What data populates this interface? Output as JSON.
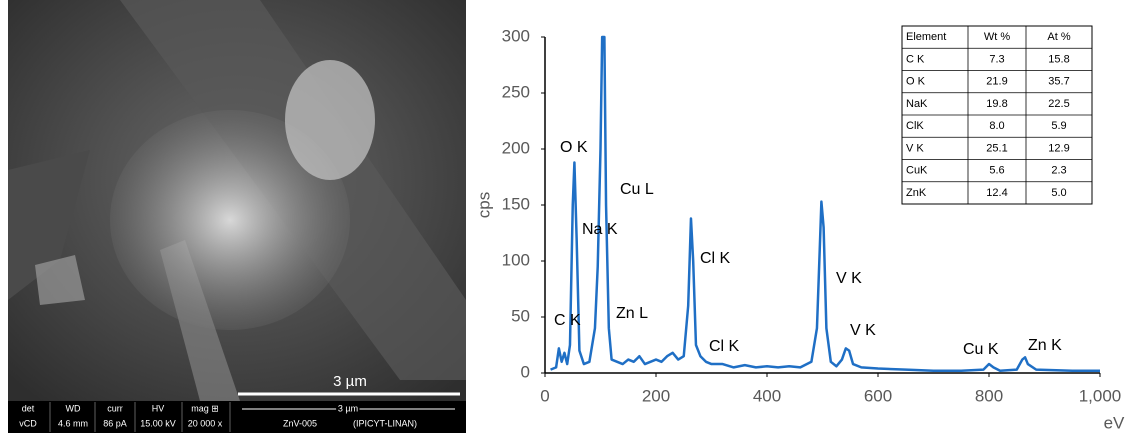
{
  "chart_data": {
    "type": "line",
    "y_label": "cps",
    "x_label": "eV",
    "xlim": [
      0,
      1000
    ],
    "ylim": [
      0,
      300
    ],
    "xticks": [
      0,
      200,
      400,
      600,
      800,
      {
        "value": 1000,
        "label": "1,000"
      }
    ],
    "yticks": [
      0,
      50,
      100,
      150,
      200,
      250,
      300
    ],
    "color": "#1f6fc5",
    "x": [
      10,
      20,
      25,
      30,
      35,
      40,
      45,
      50,
      53,
      57,
      62,
      70,
      80,
      90,
      95,
      100,
      103,
      107,
      110,
      115,
      120,
      130,
      140,
      150,
      160,
      170,
      180,
      190,
      200,
      210,
      220,
      230,
      240,
      250,
      258,
      263,
      267,
      272,
      280,
      290,
      300,
      320,
      340,
      360,
      380,
      400,
      420,
      440,
      460,
      480,
      490,
      495,
      498,
      502,
      507,
      515,
      525,
      535,
      542,
      548,
      555,
      570,
      600,
      650,
      700,
      750,
      790,
      800,
      808,
      820,
      850,
      860,
      865,
      870,
      885,
      950,
      1000
    ],
    "values": [
      3,
      5,
      22,
      10,
      18,
      8,
      25,
      150,
      188,
      120,
      20,
      8,
      10,
      40,
      95,
      200,
      300,
      300,
      150,
      40,
      12,
      10,
      8,
      12,
      10,
      15,
      8,
      10,
      12,
      10,
      15,
      18,
      12,
      15,
      60,
      138,
      100,
      25,
      15,
      10,
      8,
      8,
      5,
      7,
      5,
      6,
      5,
      6,
      5,
      10,
      40,
      110,
      153,
      130,
      40,
      10,
      6,
      12,
      22,
      20,
      8,
      5,
      4,
      3,
      2,
      2,
      3,
      8,
      5,
      2,
      3,
      12,
      14,
      8,
      3,
      2,
      2
    ],
    "annotations": [
      "O K",
      "Cu L",
      "Na K",
      "Cl K",
      "V K",
      "C K",
      "Zn L",
      "Cl K",
      "V K",
      "Cu K",
      "Zn K"
    ],
    "table": {
      "columns": [
        "Element",
        "Wt %",
        "At %"
      ],
      "rows": [
        [
          "C K",
          "7.3",
          "15.8"
        ],
        [
          "O K",
          "21.9",
          "35.7"
        ],
        [
          "NaK",
          "19.8",
          "22.5"
        ],
        [
          "ClK",
          "8.0",
          "5.9"
        ],
        [
          "V K",
          "25.1",
          "12.9"
        ],
        [
          "CuK",
          "5.6",
          "2.3"
        ],
        [
          "ZnK",
          "12.4",
          "5.0"
        ]
      ]
    }
  },
  "micrograph": {
    "scale_label": "3 µm",
    "info_header": [
      "det",
      "WD",
      "curr",
      "HV",
      "mag ⊞"
    ],
    "info_values": [
      "vCD",
      "4.6 mm",
      "86 pA",
      "15.00 kV",
      "20 000 x"
    ],
    "bar_label": "3 µm",
    "sample": "ZnV-005",
    "lab": "(IPICYT-LINAN)"
  }
}
